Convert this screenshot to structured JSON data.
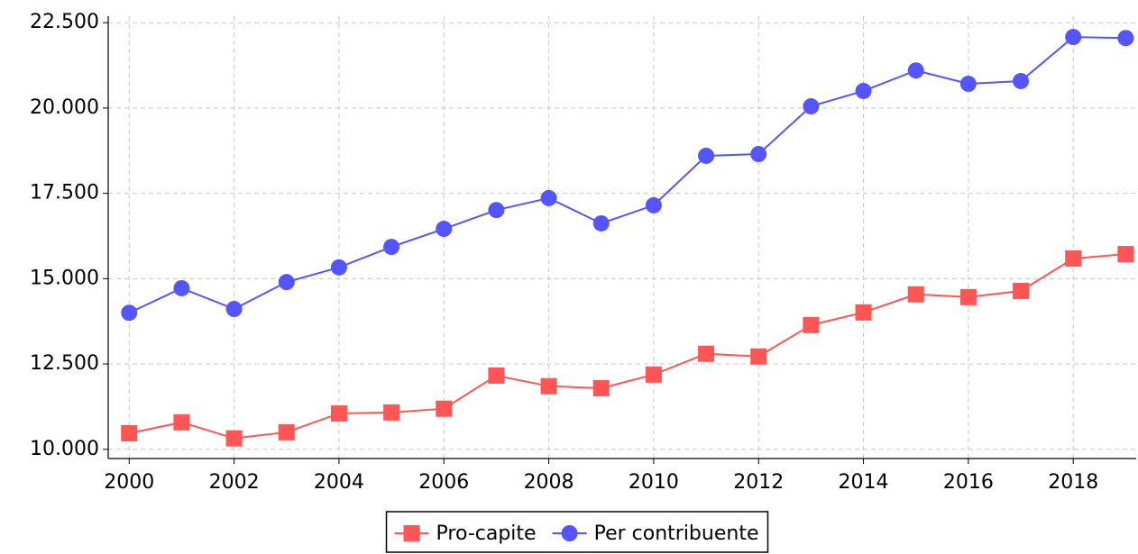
{
  "chart_data": {
    "type": "line",
    "x": [
      2000,
      2001,
      2002,
      2003,
      2004,
      2005,
      2006,
      2007,
      2008,
      2009,
      2010,
      2011,
      2012,
      2013,
      2014,
      2015,
      2016,
      2017,
      2018,
      2019
    ],
    "series": [
      {
        "name": "Pro-capite",
        "color": "#ff5555",
        "marker": "square",
        "values": [
          10470,
          10790,
          10320,
          10500,
          11050,
          11080,
          11190,
          12160,
          11850,
          11790,
          12190,
          12800,
          12720,
          13640,
          14010,
          14540,
          14460,
          14640,
          15590,
          15720
        ]
      },
      {
        "name": "Per contribuente",
        "color": "#5555ff",
        "marker": "circle",
        "values": [
          14000,
          14720,
          14110,
          14900,
          15330,
          15930,
          16460,
          17010,
          17360,
          16620,
          17150,
          18600,
          18650,
          20050,
          20500,
          21100,
          20710,
          20790,
          22080,
          22050
        ]
      }
    ],
    "xlim": [
      1999.6,
      2019.2
    ],
    "xticks": [
      2000,
      2002,
      2004,
      2006,
      2008,
      2010,
      2012,
      2014,
      2016,
      2018
    ],
    "ylim": [
      9730,
      22690
    ],
    "yticks": [
      {
        "value": 10000,
        "label": "10.000"
      },
      {
        "value": 12500,
        "label": "12.500"
      },
      {
        "value": 15000,
        "label": "15.000"
      },
      {
        "value": 17500,
        "label": "17.500"
      },
      {
        "value": 20000,
        "label": "20.000"
      },
      {
        "value": 22500,
        "label": "22.500"
      }
    ],
    "grid": true,
    "legend": "bottom"
  }
}
